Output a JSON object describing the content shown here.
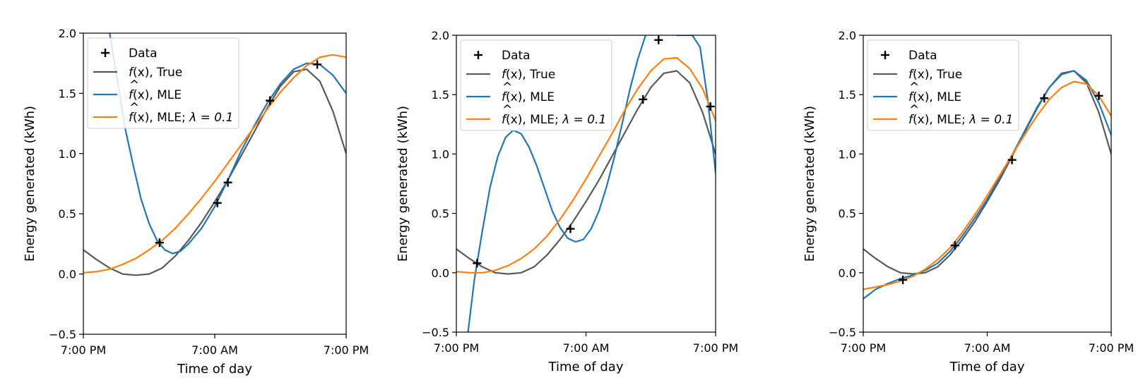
{
  "colors": {
    "true_curve": "#595959",
    "mle_curve": "#1f77b4",
    "reg_curve": "#ff7f0e",
    "data_marker": "#000000"
  },
  "legend": {
    "data": "Data",
    "true_fn": "f",
    "true_suffix": "(x), True",
    "mle_fn": "f",
    "mle_suffix": "(x), MLE",
    "reg_fn": "f",
    "reg_suffix": "(x), MLE; ",
    "reg_lambda": "λ = 0.1"
  },
  "chart_data": [
    {
      "type": "line",
      "xlabel": "Time of day",
      "ylabel": "Energy generated (kWh)",
      "xticks": [
        "7:00 PM",
        "7:00 AM",
        "7:00 PM"
      ],
      "yticks": [
        "−0.5",
        "0.0",
        "0.5",
        "1.0",
        "1.5",
        "2.0"
      ],
      "xlim": [
        0,
        1
      ],
      "ylim": [
        -0.5,
        2.0
      ],
      "legend_position": "upper-left",
      "grid": false,
      "data_points": [
        [
          0.29,
          0.26
        ],
        [
          0.51,
          0.59
        ],
        [
          0.55,
          0.76
        ],
        [
          0.71,
          1.44
        ],
        [
          0.89,
          1.74
        ]
      ],
      "series": [
        {
          "name": "f(x), True",
          "color": "#595959",
          "x": [
            0,
            0.05,
            0.1,
            0.15,
            0.2,
            0.25,
            0.3,
            0.35,
            0.4,
            0.45,
            0.5,
            0.55,
            0.6,
            0.65,
            0.7,
            0.75,
            0.8,
            0.85,
            0.9,
            0.95,
            1.0
          ],
          "y": [
            0.2,
            0.12,
            0.05,
            0.0,
            -0.01,
            0.0,
            0.05,
            0.15,
            0.28,
            0.43,
            0.6,
            0.78,
            0.98,
            1.18,
            1.38,
            1.56,
            1.68,
            1.7,
            1.6,
            1.35,
            1.0
          ]
        },
        {
          "name": "f(x), MLE",
          "color": "#1f77b4",
          "x": [
            0.1,
            0.13,
            0.16,
            0.19,
            0.22,
            0.25,
            0.28,
            0.31,
            0.34,
            0.37,
            0.4,
            0.45,
            0.5,
            0.55,
            0.6,
            0.65,
            0.7,
            0.75,
            0.8,
            0.85,
            0.9,
            0.95,
            1.0
          ],
          "y": [
            2.0,
            1.6,
            1.2,
            0.9,
            0.62,
            0.42,
            0.28,
            0.2,
            0.17,
            0.19,
            0.25,
            0.38,
            0.56,
            0.78,
            1.02,
            1.23,
            1.42,
            1.58,
            1.7,
            1.75,
            1.74,
            1.65,
            1.5
          ]
        },
        {
          "name": "f(x), MLE; λ = 0.1",
          "color": "#ff7f0e",
          "x": [
            0,
            0.05,
            0.1,
            0.15,
            0.2,
            0.25,
            0.3,
            0.35,
            0.4,
            0.45,
            0.5,
            0.55,
            0.6,
            0.65,
            0.7,
            0.75,
            0.8,
            0.85,
            0.9,
            0.95,
            1.0
          ],
          "y": [
            0.01,
            0.02,
            0.04,
            0.08,
            0.13,
            0.2,
            0.28,
            0.38,
            0.5,
            0.63,
            0.77,
            0.92,
            1.07,
            1.22,
            1.37,
            1.51,
            1.63,
            1.73,
            1.8,
            1.82,
            1.8
          ]
        }
      ]
    },
    {
      "type": "line",
      "xlabel": "Time of day",
      "ylabel": "Energy generated (kWh)",
      "xticks": [
        "7:00 PM",
        "7:00 AM",
        "7:00 PM"
      ],
      "yticks": [
        "−0.5",
        "0.0",
        "0.5",
        "1.0",
        "1.5",
        "2.0"
      ],
      "xlim": [
        0,
        1
      ],
      "ylim": [
        -0.5,
        2.0
      ],
      "legend_position": "upper-left",
      "grid": false,
      "data_points": [
        [
          0.08,
          0.08
        ],
        [
          0.44,
          0.37
        ],
        [
          0.72,
          1.46
        ],
        [
          0.78,
          1.96
        ],
        [
          0.98,
          1.4
        ]
      ],
      "series": [
        {
          "name": "f(x), True",
          "color": "#595959",
          "x": [
            0,
            0.05,
            0.1,
            0.15,
            0.2,
            0.25,
            0.3,
            0.35,
            0.4,
            0.45,
            0.5,
            0.55,
            0.6,
            0.65,
            0.7,
            0.75,
            0.8,
            0.85,
            0.9,
            0.95,
            1.0
          ],
          "y": [
            0.2,
            0.12,
            0.05,
            0.0,
            -0.01,
            0.0,
            0.05,
            0.15,
            0.28,
            0.43,
            0.6,
            0.78,
            0.98,
            1.18,
            1.38,
            1.56,
            1.68,
            1.7,
            1.6,
            1.35,
            1.0
          ]
        },
        {
          "name": "f(x), MLE",
          "color": "#1f77b4",
          "x": [
            0.045,
            0.07,
            0.1,
            0.13,
            0.16,
            0.19,
            0.22,
            0.25,
            0.28,
            0.31,
            0.34,
            0.37,
            0.4,
            0.43,
            0.46,
            0.49,
            0.52,
            0.55,
            0.58,
            0.61,
            0.64,
            0.67,
            0.7,
            0.73,
            0.76,
            0.79,
            0.82,
            0.85,
            0.88,
            0.91,
            0.94,
            0.97,
            1.0
          ],
          "y": [
            -0.5,
            -0.05,
            0.35,
            0.72,
            0.98,
            1.14,
            1.2,
            1.17,
            1.06,
            0.9,
            0.71,
            0.52,
            0.38,
            0.29,
            0.26,
            0.28,
            0.37,
            0.52,
            0.73,
            0.98,
            1.26,
            1.55,
            1.8,
            2.0,
            2.1,
            2.14,
            2.1,
            2.0,
            2.0,
            2.0,
            1.9,
            1.45,
            0.84
          ]
        },
        {
          "name": "f(x), MLE; λ = 0.1",
          "color": "#ff7f0e",
          "x": [
            0,
            0.05,
            0.1,
            0.15,
            0.2,
            0.25,
            0.3,
            0.35,
            0.4,
            0.45,
            0.5,
            0.55,
            0.6,
            0.65,
            0.7,
            0.75,
            0.8,
            0.85,
            0.9,
            0.95,
            1.0
          ],
          "y": [
            0.01,
            0.0,
            0.0,
            0.02,
            0.06,
            0.12,
            0.2,
            0.31,
            0.45,
            0.61,
            0.79,
            0.98,
            1.17,
            1.37,
            1.55,
            1.7,
            1.8,
            1.81,
            1.72,
            1.55,
            1.28
          ]
        }
      ]
    },
    {
      "type": "line",
      "xlabel": "Time of day",
      "ylabel": "Energy generated (kWh)",
      "xticks": [
        "7:00 PM",
        "7:00 AM",
        "7:00 PM"
      ],
      "yticks": [
        "−0.5",
        "0.0",
        "0.5",
        "1.0",
        "1.5",
        "2.0"
      ],
      "xlim": [
        0,
        1
      ],
      "ylim": [
        -0.5,
        2.0
      ],
      "legend_position": "upper-left",
      "grid": false,
      "data_points": [
        [
          0.16,
          -0.06
        ],
        [
          0.37,
          0.23
        ],
        [
          0.6,
          0.95
        ],
        [
          0.73,
          1.47
        ],
        [
          0.95,
          1.49
        ]
      ],
      "series": [
        {
          "name": "f(x), True",
          "color": "#595959",
          "x": [
            0,
            0.05,
            0.1,
            0.15,
            0.2,
            0.25,
            0.3,
            0.35,
            0.4,
            0.45,
            0.5,
            0.55,
            0.6,
            0.65,
            0.7,
            0.75,
            0.8,
            0.85,
            0.9,
            0.95,
            1.0
          ],
          "y": [
            0.2,
            0.12,
            0.05,
            0.0,
            -0.01,
            0.0,
            0.05,
            0.15,
            0.28,
            0.43,
            0.6,
            0.78,
            0.98,
            1.18,
            1.38,
            1.56,
            1.68,
            1.7,
            1.6,
            1.35,
            1.0
          ]
        },
        {
          "name": "f(x), MLE",
          "color": "#1f77b4",
          "x": [
            0,
            0.05,
            0.1,
            0.15,
            0.2,
            0.25,
            0.3,
            0.35,
            0.4,
            0.45,
            0.5,
            0.55,
            0.6,
            0.65,
            0.7,
            0.75,
            0.8,
            0.85,
            0.9,
            0.95,
            1.0
          ],
          "y": [
            -0.22,
            -0.14,
            -0.09,
            -0.05,
            -0.02,
            0.02,
            0.08,
            0.18,
            0.31,
            0.46,
            0.62,
            0.8,
            0.99,
            1.19,
            1.39,
            1.56,
            1.67,
            1.7,
            1.62,
            1.43,
            1.16
          ]
        },
        {
          "name": "f(x), MLE; λ = 0.1",
          "color": "#ff7f0e",
          "x": [
            0,
            0.05,
            0.1,
            0.15,
            0.2,
            0.25,
            0.3,
            0.35,
            0.4,
            0.45,
            0.5,
            0.55,
            0.6,
            0.65,
            0.7,
            0.75,
            0.8,
            0.85,
            0.9,
            0.95,
            1.0
          ],
          "y": [
            -0.14,
            -0.12,
            -0.1,
            -0.07,
            -0.03,
            0.03,
            0.11,
            0.21,
            0.34,
            0.49,
            0.65,
            0.82,
            0.99,
            1.16,
            1.32,
            1.46,
            1.56,
            1.61,
            1.59,
            1.49,
            1.32
          ]
        }
      ]
    }
  ]
}
